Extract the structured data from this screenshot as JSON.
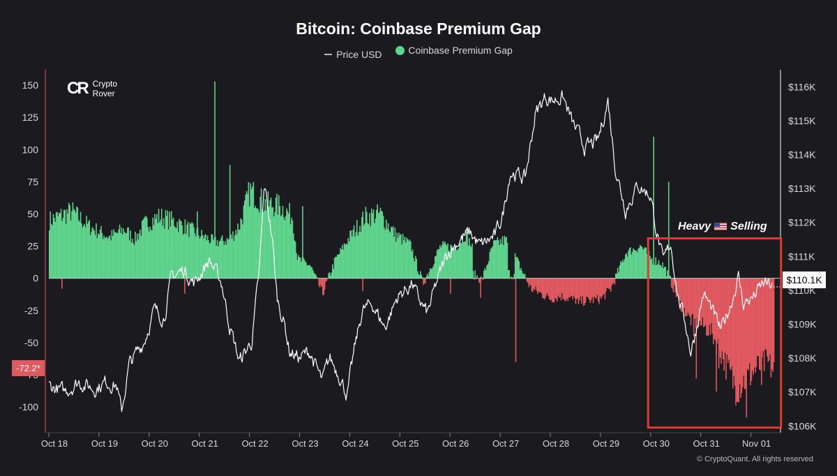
{
  "chart_data": {
    "type": "bar",
    "title": "Bitcoin: Coinbase Premium Gap",
    "legend": [
      {
        "label": "Price USD",
        "color": "#bbbbbb",
        "shape": "line"
      },
      {
        "label": "Coinbase Premium Gap",
        "color": "#5fd38d",
        "shape": "dot"
      }
    ],
    "x_ticks": [
      "Oct 18",
      "Oct 19",
      "Oct 20",
      "Oct 21",
      "Oct 22",
      "Oct 23",
      "Oct 24",
      "Oct 25",
      "Oct 26",
      "Oct 27",
      "Oct 28",
      "Oct 29",
      "Oct 30",
      "Oct 31",
      "Nov 01"
    ],
    "x_range_days": [
      0,
      14.6
    ],
    "y_left": {
      "ticks": [
        "150",
        "125",
        "100",
        "75",
        "50",
        "25",
        "0",
        "-25",
        "-50",
        "-75",
        "-100"
      ],
      "min": -120,
      "max": 162
    },
    "y_right": {
      "ticks": [
        "$116K",
        "$115K",
        "$114K",
        "$113K",
        "$112K",
        "$111K",
        "$110K",
        "$109K",
        "$108K",
        "$107K",
        "$106K"
      ],
      "min": 105.8,
      "max": 116.5,
      "unit": "K USD"
    },
    "premium_gap_series": {
      "name": "Coinbase Premium Gap",
      "positive_color": "#5fd38d",
      "negative_color": "#e0595f",
      "keypoints": [
        [
          0,
          45
        ],
        [
          0.2,
          48
        ],
        [
          0.45,
          52
        ],
        [
          0.8,
          40
        ],
        [
          1.2,
          32
        ],
        [
          1.5,
          38
        ],
        [
          1.7,
          30
        ],
        [
          1.9,
          42
        ],
        [
          2.2,
          48
        ],
        [
          2.5,
          44
        ],
        [
          2.7,
          40
        ],
        [
          3.0,
          34
        ],
        [
          3.3,
          28
        ],
        [
          3.6,
          30
        ],
        [
          3.8,
          42
        ],
        [
          4.0,
          68
        ],
        [
          4.3,
          58
        ],
        [
          4.6,
          56
        ],
        [
          4.85,
          48
        ],
        [
          4.95,
          15
        ],
        [
          5.2,
          10
        ],
        [
          5.45,
          -12
        ],
        [
          5.7,
          14
        ],
        [
          5.95,
          30
        ],
        [
          6.3,
          48
        ],
        [
          6.6,
          50
        ],
        [
          6.9,
          34
        ],
        [
          7.2,
          26
        ],
        [
          7.45,
          -4
        ],
        [
          7.8,
          25
        ],
        [
          8.1,
          24
        ],
        [
          8.3,
          35
        ],
        [
          8.45,
          22
        ],
        [
          8.6,
          -5
        ],
        [
          8.85,
          26
        ],
        [
          9.1,
          30
        ],
        [
          9.25,
          20
        ],
        [
          9.6,
          -8
        ],
        [
          10.0,
          -16
        ],
        [
          10.2,
          -14
        ],
        [
          10.6,
          -18
        ],
        [
          11.0,
          -16
        ],
        [
          11.2,
          -8
        ],
        [
          11.5,
          20
        ],
        [
          11.8,
          25
        ],
        [
          12.0,
          15
        ],
        [
          12.2,
          12
        ],
        [
          12.3,
          6
        ],
        [
          12.45,
          -8
        ],
        [
          12.6,
          -22
        ],
        [
          12.8,
          -33
        ],
        [
          13.0,
          -36
        ],
        [
          13.2,
          -42
        ],
        [
          13.4,
          -58
        ],
        [
          13.55,
          -73
        ],
        [
          13.7,
          -85
        ],
        [
          13.9,
          -78
        ],
        [
          14.1,
          -70
        ],
        [
          14.3,
          -65
        ],
        [
          14.45,
          -72.2
        ]
      ],
      "spikes": [
        [
          0.25,
          -8
        ],
        [
          2.4,
          22
        ],
        [
          2.7,
          -12
        ],
        [
          2.95,
          52
        ],
        [
          3.3,
          153
        ],
        [
          3.6,
          88
        ],
        [
          5.05,
          56
        ],
        [
          6.25,
          -10
        ],
        [
          8.0,
          -12
        ],
        [
          8.6,
          -15
        ],
        [
          9.3,
          -65
        ],
        [
          10.55,
          -20
        ],
        [
          12.05,
          110
        ],
        [
          12.35,
          75
        ],
        [
          12.85,
          -45
        ],
        [
          12.9,
          -78
        ],
        [
          13.3,
          -88
        ],
        [
          13.35,
          -70
        ],
        [
          13.8,
          -55
        ],
        [
          13.9,
          -108
        ],
        [
          14.2,
          -83
        ]
      ]
    },
    "price_series": {
      "name": "Price USD",
      "color": "#ffffff",
      "keypoints": [
        [
          0,
          107.2
        ],
        [
          0.3,
          107.0
        ],
        [
          0.6,
          107.3
        ],
        [
          0.9,
          107.1
        ],
        [
          1.15,
          107.3
        ],
        [
          1.35,
          107.2
        ],
        [
          1.45,
          106.4
        ],
        [
          1.6,
          107.8
        ],
        [
          1.9,
          108.5
        ],
        [
          2.1,
          109.4
        ],
        [
          2.3,
          109.2
        ],
        [
          2.45,
          110.4
        ],
        [
          2.7,
          110.6
        ],
        [
          2.9,
          110.2
        ],
        [
          3.2,
          110.9
        ],
        [
          3.45,
          110.2
        ],
        [
          3.6,
          109.0
        ],
        [
          3.8,
          107.9
        ],
        [
          4.05,
          108.5
        ],
        [
          4.2,
          110.6
        ],
        [
          4.3,
          113.1
        ],
        [
          4.45,
          111.6
        ],
        [
          4.55,
          109.8
        ],
        [
          4.7,
          109.0
        ],
        [
          4.8,
          108.2
        ],
        [
          5.0,
          108.0
        ],
        [
          5.2,
          108.2
        ],
        [
          5.45,
          107.3
        ],
        [
          5.6,
          108.0
        ],
        [
          5.8,
          107.5
        ],
        [
          5.95,
          106.9
        ],
        [
          6.1,
          108.3
        ],
        [
          6.25,
          109.4
        ],
        [
          6.45,
          109.6
        ],
        [
          6.7,
          108.9
        ],
        [
          6.95,
          109.8
        ],
        [
          7.25,
          110.2
        ],
        [
          7.35,
          109.8
        ],
        [
          7.55,
          109.3
        ],
        [
          7.75,
          110.3
        ],
        [
          7.95,
          111.1
        ],
        [
          8.2,
          111.5
        ],
        [
          8.4,
          111.7
        ],
        [
          8.6,
          111.3
        ],
        [
          8.9,
          111.6
        ],
        [
          9.05,
          112.2
        ],
        [
          9.2,
          113.5
        ],
        [
          9.5,
          113.3
        ],
        [
          9.7,
          115.2
        ],
        [
          9.9,
          115.7
        ],
        [
          10.05,
          115.6
        ],
        [
          10.25,
          115.7
        ],
        [
          10.45,
          114.9
        ],
        [
          10.7,
          114.2
        ],
        [
          10.95,
          114.4
        ],
        [
          11.15,
          115.6
        ],
        [
          11.3,
          113.6
        ],
        [
          11.5,
          112.4
        ],
        [
          11.75,
          113.1
        ],
        [
          12.0,
          112.8
        ],
        [
          12.1,
          111.9
        ],
        [
          12.25,
          110.8
        ],
        [
          12.4,
          111.4
        ],
        [
          12.55,
          109.8
        ],
        [
          12.7,
          109.0
        ],
        [
          12.8,
          108.2
        ],
        [
          12.9,
          108.8
        ],
        [
          13.05,
          109.9
        ],
        [
          13.2,
          109.5
        ],
        [
          13.4,
          108.8
        ],
        [
          13.6,
          109.6
        ],
        [
          13.75,
          110.4
        ],
        [
          13.85,
          109.6
        ],
        [
          14.05,
          109.8
        ],
        [
          14.25,
          110.2
        ],
        [
          14.45,
          110.1
        ]
      ]
    },
    "annotation": {
      "text_before": "Heavy",
      "text_after": "Selling",
      "box_range_days": [
        11.95,
        14.6
      ],
      "box_y": [
        31,
        -116
      ]
    },
    "last_values": {
      "premium_gap": "-72.2*",
      "price": "$110.1K"
    }
  },
  "branding": {
    "logo_mark": "CR",
    "logo_line1": "Crypto",
    "logo_line2": "Rover"
  },
  "copyright": "© CryptoQuant. All rights reserved"
}
